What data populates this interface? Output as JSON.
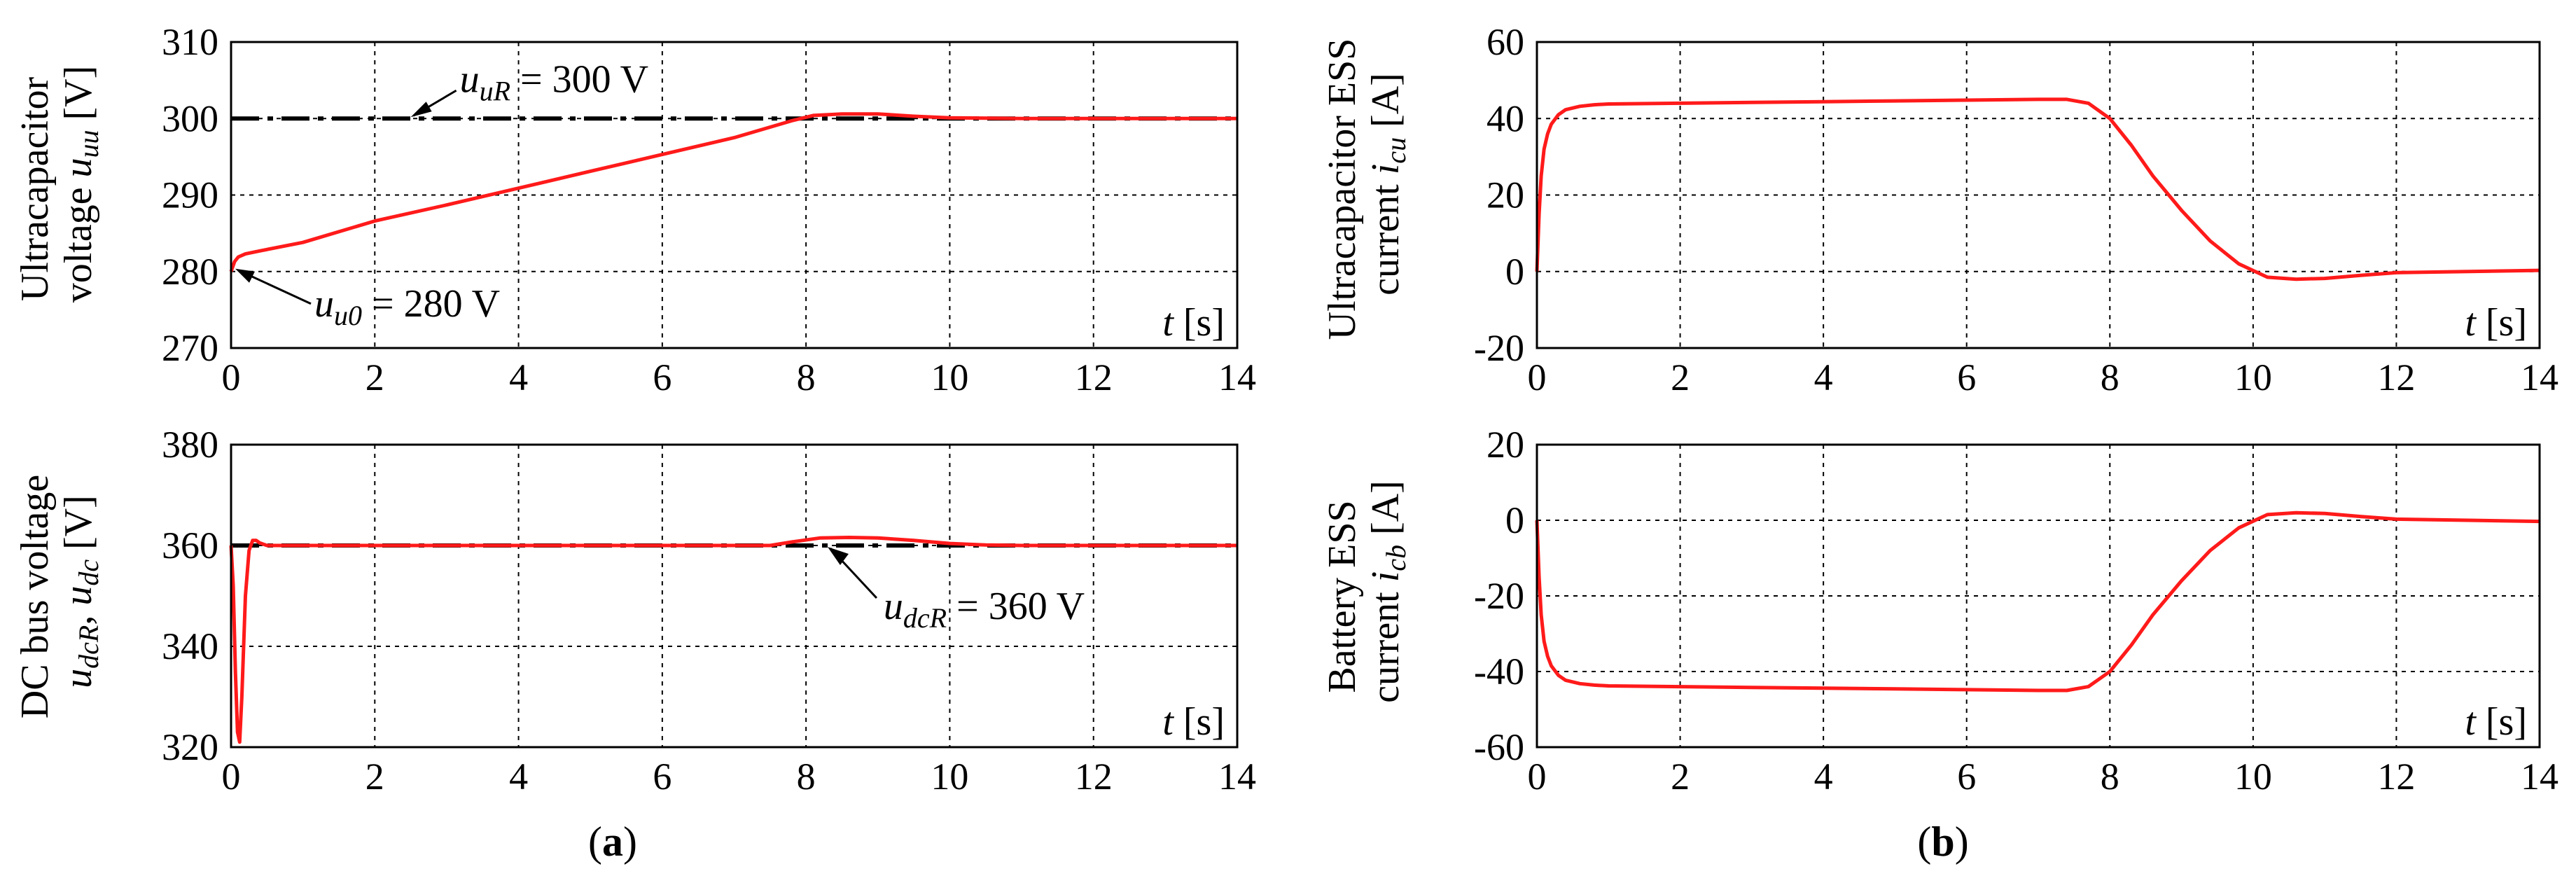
{
  "figure": {
    "caption_a_open": "(",
    "caption_a": "a",
    "caption_a_close": ")",
    "caption_b_open": "(",
    "caption_b": "b",
    "caption_b_close": ")"
  },
  "chart_data": [
    {
      "id": "a-top",
      "type": "line",
      "ylabel_line1": "Ultracapacitor",
      "ylabel_line2_text": "voltage ",
      "ylabel_line2_var": "u",
      "ylabel_line2_sub": "uu",
      "ylabel_line2_unit": " [V]",
      "xlabel_var": "t",
      "xlabel_unit": " [s]",
      "xlim": [
        0,
        14
      ],
      "ylim": [
        270,
        310
      ],
      "xticks": [
        0,
        2,
        4,
        6,
        8,
        10,
        12,
        14
      ],
      "yticks": [
        270,
        280,
        290,
        300,
        310
      ],
      "reference": {
        "y": 300,
        "label_var": "u",
        "label_sub": "uR",
        "label_value": " = 300 V",
        "point_x": 2.5
      },
      "annotation": {
        "label_var": "u",
        "label_sub": "u0",
        "label_value": " = 280 V",
        "point_x": 0.0,
        "point_y": 280
      },
      "series": [
        {
          "name": "uu",
          "color": "#ff1a1a",
          "x": [
            0,
            0.05,
            0.1,
            0.2,
            0.4,
            1,
            2,
            3,
            4,
            5,
            6,
            7,
            7.8,
            8.1,
            8.5,
            9,
            9.5,
            10,
            11,
            12,
            13,
            14
          ],
          "y": [
            280,
            281.3,
            281.9,
            282.3,
            282.7,
            283.8,
            286.6,
            288.7,
            290.9,
            293.1,
            295.3,
            297.5,
            299.7,
            300.4,
            300.6,
            300.6,
            300.3,
            300.1,
            300.0,
            300.0,
            300.0,
            300.0
          ]
        }
      ]
    },
    {
      "id": "a-bottom",
      "type": "line",
      "ylabel_line1": "DC bus voltage",
      "ylabel_line2_var": "u",
      "ylabel_line2_sub": "dcR",
      "ylabel_line2_sep": ", ",
      "ylabel_line2_var2": "u",
      "ylabel_line2_sub2": "dc",
      "ylabel_line2_unit": " [V]",
      "xlabel_var": "t",
      "xlabel_unit": " [s]",
      "xlim": [
        0,
        14
      ],
      "ylim": [
        320,
        380
      ],
      "xticks": [
        0,
        2,
        4,
        6,
        8,
        10,
        12,
        14
      ],
      "yticks": [
        320,
        340,
        360,
        380
      ],
      "reference": {
        "y": 360,
        "label_var": "u",
        "label_sub": "dcR",
        "label_value": " = 360 V",
        "point_x": 8.3
      },
      "series": [
        {
          "name": "udc",
          "color": "#ff1a1a",
          "x": [
            0,
            0.03,
            0.06,
            0.09,
            0.12,
            0.15,
            0.2,
            0.25,
            0.3,
            0.35,
            0.4,
            0.5,
            1,
            2,
            4,
            6,
            7.5,
            7.8,
            8.2,
            8.6,
            9,
            9.5,
            10,
            10.5,
            11,
            12,
            14
          ],
          "y": [
            360,
            352,
            335,
            323,
            321,
            330,
            350,
            359,
            361,
            361,
            360.5,
            360,
            360,
            360,
            360,
            360,
            360,
            360.7,
            361.5,
            361.6,
            361.5,
            361,
            360.4,
            360.1,
            360,
            360,
            360
          ]
        }
      ]
    },
    {
      "id": "b-top",
      "type": "line",
      "ylabel_line1": "Ultracapacitor ESS",
      "ylabel_line2_text": "current ",
      "ylabel_line2_var": "i",
      "ylabel_line2_sub": "cu",
      "ylabel_line2_unit": " [A]",
      "xlabel_var": "t",
      "xlabel_unit": " [s]",
      "xlim": [
        0,
        14
      ],
      "ylim": [
        -20,
        60
      ],
      "xticks": [
        0,
        2,
        4,
        6,
        8,
        10,
        12,
        14
      ],
      "yticks": [
        -20,
        0,
        20,
        40,
        60
      ],
      "series": [
        {
          "name": "icu",
          "color": "#ff1a1a",
          "x": [
            0,
            0.03,
            0.06,
            0.1,
            0.15,
            0.2,
            0.3,
            0.4,
            0.6,
            0.8,
            1,
            2,
            3,
            4,
            5,
            6,
            7,
            7.4,
            7.7,
            8,
            8.3,
            8.6,
            9,
            9.4,
            9.8,
            10.2,
            10.6,
            11,
            11.5,
            12,
            13,
            14
          ],
          "y": [
            0,
            15,
            25,
            32,
            36,
            38.5,
            41,
            42.3,
            43.2,
            43.6,
            43.8,
            44,
            44.2,
            44.4,
            44.6,
            44.8,
            45,
            45,
            44,
            40,
            33,
            25,
            16,
            8,
            2,
            -1.5,
            -2,
            -1.8,
            -1,
            -0.3,
            0,
            0.3
          ]
        }
      ]
    },
    {
      "id": "b-bottom",
      "type": "line",
      "ylabel_line1": "Battery ESS",
      "ylabel_line2_text": "current ",
      "ylabel_line2_var": "i",
      "ylabel_line2_sub": "cb",
      "ylabel_line2_unit": " [A]",
      "xlabel_var": "t",
      "xlabel_unit": " [s]",
      "xlim": [
        0,
        14
      ],
      "ylim": [
        -60,
        20
      ],
      "xticks": [
        0,
        2,
        4,
        6,
        8,
        10,
        12,
        14
      ],
      "yticks": [
        -60,
        -40,
        -20,
        0,
        20
      ],
      "series": [
        {
          "name": "icb",
          "color": "#ff1a1a",
          "x": [
            0,
            0.03,
            0.06,
            0.1,
            0.15,
            0.2,
            0.3,
            0.4,
            0.6,
            0.8,
            1,
            2,
            3,
            4,
            5,
            6,
            7,
            7.4,
            7.7,
            8,
            8.3,
            8.6,
            9,
            9.4,
            9.8,
            10.2,
            10.6,
            11,
            11.5,
            12,
            13,
            14
          ],
          "y": [
            0,
            -15,
            -25,
            -32,
            -36,
            -38.5,
            -41,
            -42.3,
            -43.2,
            -43.6,
            -43.8,
            -44,
            -44.2,
            -44.4,
            -44.6,
            -44.8,
            -45,
            -45,
            -44,
            -40,
            -33,
            -25,
            -16,
            -8,
            -2,
            1.5,
            2,
            1.8,
            1,
            0.3,
            0,
            -0.3
          ]
        }
      ]
    }
  ]
}
